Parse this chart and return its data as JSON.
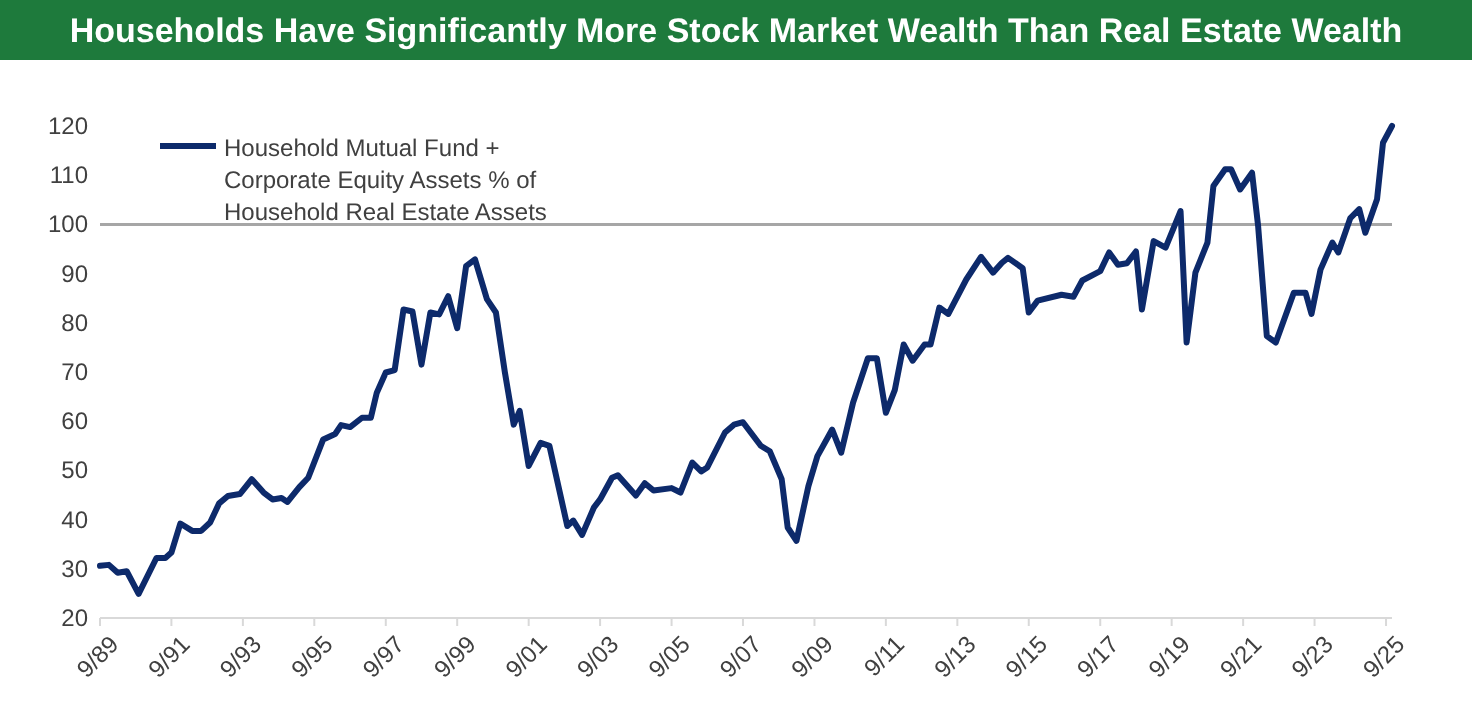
{
  "chart_data": {
    "type": "line",
    "title": "Households Have Significantly More Stock Market Wealth Than Real Estate Wealth",
    "x": [
      "1989-09",
      "1989-12",
      "1990-03",
      "1990-06",
      "1990-10",
      "1991-04",
      "1991-07",
      "1991-09",
      "1991-12",
      "1992-04",
      "1992-07",
      "1992-10",
      "1993-01",
      "1993-04",
      "1993-08",
      "1993-12",
      "1994-04",
      "1994-07",
      "1994-10",
      "1994-12",
      "1995-04",
      "1995-07",
      "1995-12",
      "1996-04",
      "1996-06",
      "1996-09",
      "1997-01",
      "1997-04",
      "1997-06",
      "1997-09",
      "1997-12",
      "1998-03",
      "1998-06",
      "1998-09",
      "1998-12",
      "1999-03",
      "1999-06",
      "1999-09",
      "1999-12",
      "2000-03",
      "2000-07",
      "2000-10",
      "2001-01",
      "2001-04",
      "2001-06",
      "2001-09",
      "2002-01",
      "2002-04",
      "2002-10",
      "2002-12",
      "2003-03",
      "2003-07",
      "2003-09",
      "2004-01",
      "2004-03",
      "2004-09",
      "2004-12",
      "2005-03",
      "2005-09",
      "2005-12",
      "2006-04",
      "2006-07",
      "2006-09",
      "2007-03",
      "2007-06",
      "2007-09",
      "2008-03",
      "2008-06",
      "2008-10",
      "2008-12",
      "2009-03",
      "2009-07",
      "2009-10",
      "2010-03",
      "2010-06",
      "2010-10",
      "2011-03",
      "2011-06",
      "2011-09",
      "2011-12",
      "2012-03",
      "2012-06",
      "2012-10",
      "2012-12",
      "2013-03",
      "2013-06",
      "2013-12",
      "2014-05",
      "2014-09",
      "2014-12",
      "2015-02",
      "2015-07",
      "2015-09",
      "2015-12",
      "2016-08",
      "2016-12",
      "2017-03",
      "2017-09",
      "2017-12",
      "2018-03",
      "2018-06",
      "2018-09",
      "2018-11",
      "2019-03",
      "2019-07",
      "2019-12",
      "2020-02",
      "2020-05",
      "2020-09",
      "2020-11",
      "2021-03",
      "2021-05",
      "2021-08",
      "2021-12",
      "2022-02",
      "2022-05",
      "2022-08",
      "2023-02",
      "2023-06",
      "2023-08",
      "2023-11",
      "2024-03",
      "2024-05",
      "2024-09",
      "2024-12",
      "2025-02",
      "2025-06",
      "2025-08",
      "2025-11"
    ],
    "series": [
      {
        "name": "Household Mutual Fund + Corporate Equity Assets % of Household Real Estate Assets",
        "color": "#0d2a6b",
        "values": [
          30.6,
          30.8,
          29.2,
          29.5,
          24.9,
          32.2,
          32.2,
          33.3,
          39.2,
          37.7,
          37.7,
          39.4,
          43.3,
          44.8,
          45.2,
          48.2,
          45.5,
          44.1,
          44.4,
          43.6,
          46.6,
          48.5,
          56.3,
          57.4,
          59.2,
          58.8,
          60.7,
          60.7,
          65.8,
          69.9,
          70.4,
          82.7,
          82.3,
          71.5,
          82.1,
          81.7,
          85.4,
          78.9,
          91.5,
          92.9,
          84.8,
          82.1,
          69.9,
          59.3,
          62.1,
          50.9,
          55.6,
          55.0,
          38.7,
          39.8,
          36.9,
          42.5,
          44.1,
          48.5,
          49.0,
          44.9,
          47.4,
          45.9,
          46.4,
          45.5,
          51.6,
          49.8,
          50.6,
          57.7,
          59.3,
          59.8,
          55.0,
          53.9,
          48.2,
          38.4,
          35.7,
          46.8,
          52.9,
          58.3,
          53.6,
          63.8,
          72.8,
          72.8,
          61.7,
          66.3,
          75.6,
          72.3,
          75.6,
          75.6,
          83.1,
          81.8,
          88.8,
          93.4,
          90.2,
          92.2,
          93.2,
          91.1,
          82.1,
          84.5,
          85.7,
          85.3,
          88.6,
          90.5,
          94.3,
          91.8,
          92.1,
          94.5,
          82.7,
          96.6,
          95.3,
          102.7,
          76.0,
          90.2,
          96.3,
          107.8,
          111.2,
          111.2,
          107.1,
          110.5,
          99.7,
          77.3,
          76.0,
          86.1,
          86.1,
          81.8,
          90.8,
          96.3,
          94.3,
          101.3,
          103.1,
          98.3,
          105.1,
          116.6,
          120
        ]
      }
    ],
    "xlim": [
      "1989-09",
      "2025-11"
    ],
    "xticks": [
      {
        "value": "1989-09",
        "label": "9/89"
      },
      {
        "value": "1991-09",
        "label": "9/91"
      },
      {
        "value": "1993-09",
        "label": "9/93"
      },
      {
        "value": "1995-09",
        "label": "9/95"
      },
      {
        "value": "1997-09",
        "label": "9/97"
      },
      {
        "value": "1999-09",
        "label": "9/99"
      },
      {
        "value": "2001-09",
        "label": "9/01"
      },
      {
        "value": "2003-09",
        "label": "9/03"
      },
      {
        "value": "2005-09",
        "label": "9/05"
      },
      {
        "value": "2007-09",
        "label": "9/07"
      },
      {
        "value": "2009-09",
        "label": "9/09"
      },
      {
        "value": "2011-09",
        "label": "9/11"
      },
      {
        "value": "2013-09",
        "label": "9/13"
      },
      {
        "value": "2015-09",
        "label": "9/15"
      },
      {
        "value": "2017-09",
        "label": "9/17"
      },
      {
        "value": "2019-09",
        "label": "9/19"
      },
      {
        "value": "2021-09",
        "label": "9/21"
      },
      {
        "value": "2023-09",
        "label": "9/23"
      },
      {
        "value": "2025-09",
        "label": "9/25"
      }
    ],
    "ylim": [
      20,
      120
    ],
    "yticks": [
      20,
      30,
      40,
      50,
      60,
      70,
      80,
      90,
      100,
      110,
      120
    ],
    "ref_lines": [
      {
        "axis": "y",
        "value": 100,
        "color": "#a6a6a6"
      }
    ],
    "legend": "top left",
    "grid": false,
    "line_style": "solid"
  }
}
